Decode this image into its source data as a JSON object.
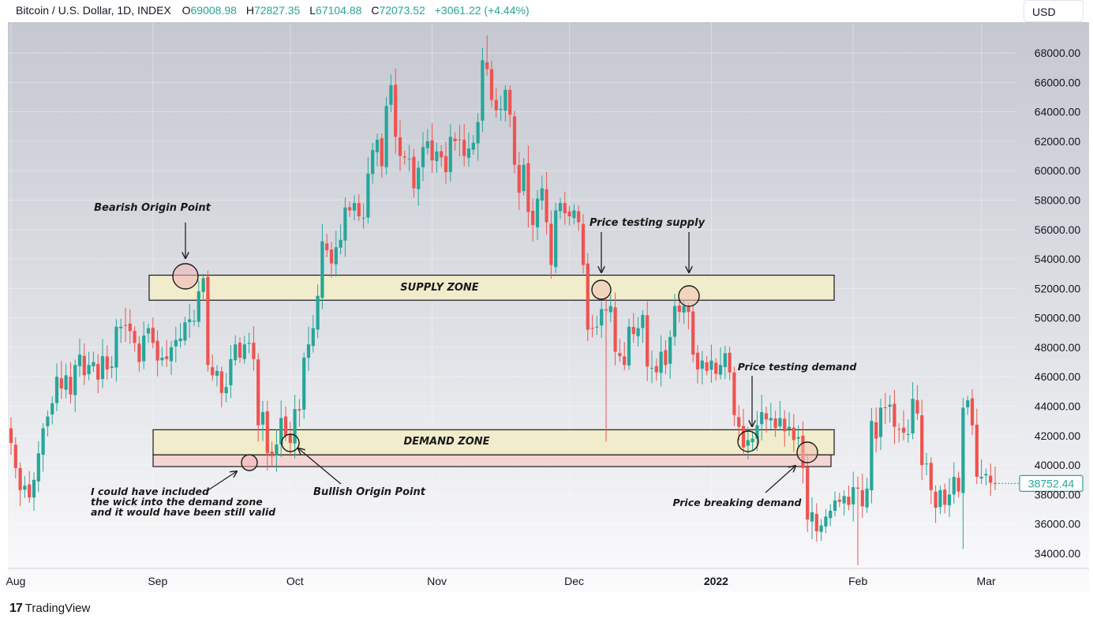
{
  "header": {
    "symbol": "Bitcoin / U.S. Dollar, 1D, INDEX",
    "o_label": "O",
    "o_value": "69008.98",
    "h_label": "H",
    "h_value": "72827.35",
    "l_label": "L",
    "l_value": "67104.88",
    "c_label": "C",
    "c_value": "72073.52",
    "change": "+3061.22 (+4.44%)"
  },
  "currency_button": "USD",
  "brand": {
    "logo_glyph": "17",
    "name": "TradingView"
  },
  "colors": {
    "up": "#26a69a",
    "down": "#ef5350",
    "zone_fill": "#f0eccc",
    "wick_zone": "#f5d4d4"
  },
  "chart_data": {
    "type": "candlestick",
    "title": "",
    "ylim": [
      33000,
      70500
    ],
    "y_ticks": [
      "34000.00",
      "36000.00",
      "38000.00",
      "40000.00",
      "42000.00",
      "44000.00",
      "46000.00",
      "48000.00",
      "50000.00",
      "52000.00",
      "54000.00",
      "56000.00",
      "58000.00",
      "60000.00",
      "62000.00",
      "64000.00",
      "66000.00",
      "68000.00"
    ],
    "x_labels": [
      {
        "label": "Aug",
        "day": 0,
        "bold": false
      },
      {
        "label": "Sep",
        "day": 31,
        "bold": false
      },
      {
        "label": "Oct",
        "day": 61,
        "bold": false
      },
      {
        "label": "Nov",
        "day": 92,
        "bold": false
      },
      {
        "label": "Dec",
        "day": 122,
        "bold": false
      },
      {
        "label": "2022",
        "day": 153,
        "bold": true
      },
      {
        "label": "Feb",
        "day": 184,
        "bold": false
      },
      {
        "label": "Mar",
        "day": 212,
        "bold": false
      }
    ],
    "current_price": "38752.44",
    "current_value": 38752,
    "close": [
      41500,
      39800,
      38300,
      38600,
      37800,
      39000,
      40800,
      42500,
      43300,
      44200,
      46000,
      45200,
      46100,
      44800,
      46800,
      47500,
      46100,
      46800,
      47000,
      45800,
      47400,
      46500,
      46700,
      49400,
      49400,
      49500,
      49100,
      48300,
      47000,
      48800,
      49300,
      48300,
      47100,
      47300,
      47200,
      48000,
      48500,
      48600,
      49700,
      49900,
      49800,
      51800,
      52700,
      46800,
      46100,
      46400,
      44900,
      45300,
      47200,
      48200,
      47300,
      48200,
      48300,
      47200,
      42700,
      43600,
      40800,
      40600,
      41400,
      43200,
      42000,
      41500,
      43800,
      43700,
      47300,
      48200,
      49300,
      51500,
      55200,
      54600,
      53700,
      54800,
      55300,
      57500,
      57300,
      57800,
      56900,
      56800,
      59800,
      61400,
      62100,
      60300,
      64400,
      65800,
      62300,
      61000,
      60900,
      60800,
      58800,
      60200,
      61600,
      62000,
      60700,
      61300,
      60900,
      59900,
      62300,
      62000,
      62100,
      61000,
      61500,
      61900,
      63300,
      67500,
      66900,
      64800,
      64100,
      64200,
      65500,
      63800,
      60400,
      58500,
      60400,
      57200,
      56300,
      58100,
      58800,
      56500,
      53600,
      57300,
      57800,
      57100,
      56900,
      57300,
      56500,
      53600,
      49200,
      49300,
      49400,
      50600,
      50500,
      50800,
      47700,
      47400,
      46800,
      49400,
      48900,
      49300,
      50200,
      46700,
      46600,
      46300,
      47700,
      46800,
      48700,
      50800,
      50400,
      50800,
      50400,
      47500,
      46500,
      47100,
      46400,
      47100,
      46200,
      46800,
      47600,
      46300,
      43400,
      42600,
      41200,
      41700,
      41800,
      42700,
      43600,
      43100,
      43200,
      42500,
      43200,
      42300,
      42600,
      41700,
      41900,
      39800,
      36300,
      36800,
      35500,
      35900,
      36500,
      36900,
      37600,
      37500,
      37900,
      37300,
      38500,
      38400,
      37200,
      38400,
      43000,
      41800,
      43900,
      43900,
      44100,
      42600,
      42400,
      42200,
      42100,
      44500,
      43500,
      40000,
      40100,
      38300,
      37100,
      38300,
      37300,
      38000,
      39200,
      38200,
      43900,
      44400,
      42700,
      39200,
      39200,
      39400,
      38800,
      38752
    ],
    "annotations": [
      {
        "text": "Bearish Origin Point"
      },
      {
        "text": "SUPPLY ZONE"
      },
      {
        "text": "DEMAND ZONE"
      },
      {
        "text": "Price testing supply"
      },
      {
        "text": "Price testing demand"
      },
      {
        "text": "Bullish Origin Point"
      },
      {
        "text": "Price breaking demand"
      },
      {
        "text": "I could have included"
      },
      {
        "text": "the wick into the demand zone"
      },
      {
        "text": "and it would have been still valid"
      }
    ],
    "supply_zone": [
      51200,
      52900
    ],
    "demand_zone": [
      40700,
      42400
    ],
    "wick_extension": [
      39900,
      40700
    ]
  }
}
